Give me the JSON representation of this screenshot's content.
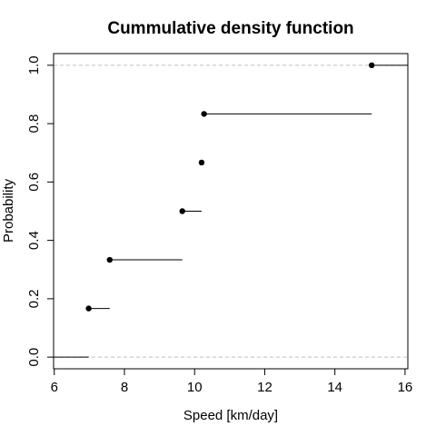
{
  "chart_data": {
    "type": "line",
    "title": "Cummulative density function",
    "xlabel": "Speed [km/day]",
    "ylabel": "Probability",
    "xlim": [
      5.98,
      16.08
    ],
    "ylim": [
      -0.04,
      1.04
    ],
    "x_ticks": [
      "6",
      "8",
      "10",
      "12",
      "14",
      "16"
    ],
    "y_ticks": [
      "0.0",
      "0.2",
      "0.4",
      "0.6",
      "0.8",
      "1.0"
    ],
    "reference_lines_y": [
      0,
      1
    ],
    "steps": [
      {
        "x": 6.98,
        "y": 0.1667,
        "x_next": 7.58
      },
      {
        "x": 7.58,
        "y": 0.3333,
        "x_next": 9.65
      },
      {
        "x": 9.65,
        "y": 0.5,
        "x_next": 10.2
      },
      {
        "x": 10.2,
        "y": 0.6667,
        "x_next": 10.27
      },
      {
        "x": 10.27,
        "y": 0.8333,
        "x_next": 15.05
      },
      {
        "x": 15.05,
        "y": 1.0,
        "x_next": 16.08
      }
    ],
    "left_tail": {
      "x_from": 5.98,
      "x_to": 6.98,
      "y": 0
    },
    "grid": false,
    "legend": "none"
  }
}
